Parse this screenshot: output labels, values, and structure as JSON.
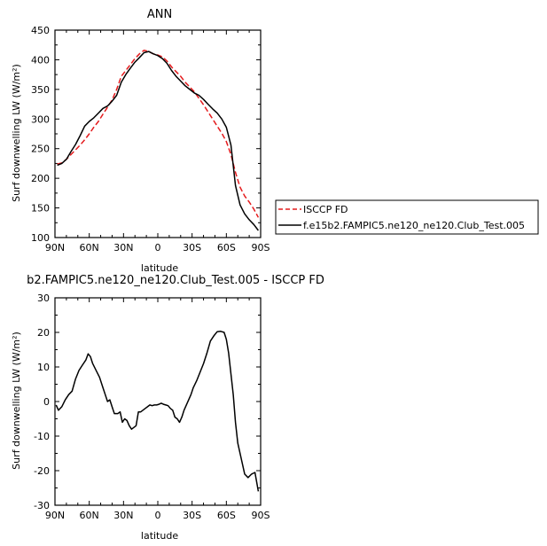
{
  "chart_data": [
    {
      "type": "line",
      "title": "ANN",
      "xlabel": "latitude",
      "ylabel": "Surf downwelling LW (W/m²)",
      "xlim": [
        90,
        -90
      ],
      "ylim": [
        100,
        450
      ],
      "xticks": [
        90,
        60,
        30,
        0,
        -30,
        -60,
        -90
      ],
      "xtick_labels": [
        "90N",
        "60N",
        "30N",
        "0",
        "30S",
        "60S",
        "90S"
      ],
      "yticks": [
        100,
        150,
        200,
        250,
        300,
        350,
        400,
        450
      ],
      "ytick_labels": [
        "100",
        "150",
        "200",
        "250",
        "300",
        "350",
        "400",
        "450"
      ],
      "grid": false,
      "legend_position": "right",
      "series": [
        {
          "name": "ISCCP FD",
          "color": "#e41a1c",
          "style": "dashed",
          "x": [
            88,
            84,
            80,
            76,
            72,
            68,
            64,
            60,
            56,
            52,
            48,
            44,
            40,
            36,
            32,
            28,
            24,
            20,
            16,
            12,
            8,
            4,
            0,
            -4,
            -8,
            -12,
            -16,
            -20,
            -24,
            -28,
            -32,
            -36,
            -40,
            -44,
            -48,
            -52,
            -56,
            -60,
            -64,
            -68,
            -72,
            -76,
            -80,
            -84,
            -88
          ],
          "y": [
            224,
            226,
            232,
            240,
            248,
            256,
            265,
            275,
            286,
            296,
            308,
            320,
            332,
            350,
            372,
            382,
            392,
            402,
            410,
            416,
            414,
            410,
            408,
            405,
            398,
            388,
            380,
            372,
            362,
            354,
            346,
            335,
            324,
            312,
            300,
            288,
            276,
            262,
            240,
            210,
            185,
            170,
            160,
            148,
            134
          ]
        },
        {
          "name": "f.e15b2.FAMPIC5.ne120_ne120.Club_Test.005",
          "color": "#000000",
          "style": "solid",
          "x": [
            88,
            84,
            80,
            76,
            72,
            68,
            64,
            60,
            56,
            52,
            48,
            44,
            40,
            36,
            32,
            28,
            24,
            20,
            16,
            12,
            8,
            4,
            0,
            -4,
            -8,
            -12,
            -16,
            -20,
            -24,
            -28,
            -32,
            -36,
            -40,
            -44,
            -48,
            -52,
            -56,
            -60,
            -64,
            -68,
            -72,
            -76,
            -80,
            -84,
            -88
          ],
          "y": [
            222,
            225,
            232,
            245,
            257,
            272,
            288,
            296,
            302,
            310,
            318,
            322,
            330,
            340,
            362,
            375,
            386,
            396,
            404,
            412,
            414,
            410,
            407,
            402,
            394,
            382,
            372,
            364,
            356,
            350,
            344,
            340,
            333,
            325,
            317,
            310,
            300,
            286,
            256,
            188,
            155,
            140,
            130,
            122,
            112
          ]
        }
      ]
    },
    {
      "type": "line",
      "title": "b2.FAMPIC5.ne120_ne120.Club_Test.005 - ISCCP FD",
      "xlabel": "latitude",
      "ylabel": "Surf downwelling LW (W/m²)",
      "xlim": [
        90,
        -90
      ],
      "ylim": [
        -30,
        30
      ],
      "xticks": [
        90,
        60,
        30,
        0,
        -30,
        -60,
        -90
      ],
      "xtick_labels": [
        "90N",
        "60N",
        "30N",
        "0",
        "30S",
        "60S",
        "90S"
      ],
      "yticks": [
        -30,
        -20,
        -10,
        0,
        10,
        20,
        30
      ],
      "ytick_labels": [
        "-30",
        "-20",
        "-10",
        "0",
        "10",
        "20",
        "30"
      ],
      "grid": false,
      "series": [
        {
          "color": "#000000",
          "style": "solid",
          "x": [
            89,
            87,
            84,
            81,
            78,
            75,
            72,
            69,
            66,
            63,
            61,
            59,
            57,
            54,
            51,
            48,
            46,
            44,
            42,
            40,
            38,
            35,
            33,
            31,
            29,
            27,
            25,
            23,
            21,
            19,
            17,
            15,
            13,
            11,
            9,
            7,
            5,
            3,
            1,
            -1,
            -3,
            -5,
            -7,
            -9,
            -11,
            -13,
            -15,
            -17,
            -19,
            -21,
            -23,
            -25,
            -27,
            -29,
            -31,
            -34,
            -37,
            -40,
            -43,
            -46,
            -49,
            -52,
            -55,
            -58,
            -60,
            -62,
            -64,
            -66,
            -68,
            -70,
            -73,
            -76,
            -79,
            -82,
            -85,
            -88
          ],
          "y": [
            -1.0,
            -2.5,
            -1.5,
            0.5,
            2.0,
            3.0,
            6.5,
            9.0,
            10.5,
            12.0,
            13.8,
            13.0,
            11.0,
            9.0,
            7.0,
            4.0,
            2.0,
            0.0,
            0.5,
            -1.5,
            -3.5,
            -3.5,
            -3.0,
            -6.0,
            -5.0,
            -5.5,
            -7.0,
            -8.0,
            -7.5,
            -7.0,
            -3.0,
            -3.0,
            -2.5,
            -2.0,
            -1.5,
            -1.0,
            -1.2,
            -1.0,
            -1.0,
            -0.8,
            -0.5,
            -0.8,
            -1.0,
            -1.2,
            -2.0,
            -2.5,
            -4.5,
            -5.0,
            -6.0,
            -4.5,
            -2.5,
            -1.0,
            0.5,
            2.0,
            4.0,
            6.0,
            8.5,
            11.0,
            14.0,
            17.5,
            19.0,
            20.2,
            20.3,
            20.0,
            18.0,
            14.0,
            8.0,
            2.0,
            -6.0,
            -12.0,
            -16.5,
            -21.0,
            -22.0,
            -21.0,
            -20.5,
            -26.0
          ]
        }
      ]
    }
  ]
}
